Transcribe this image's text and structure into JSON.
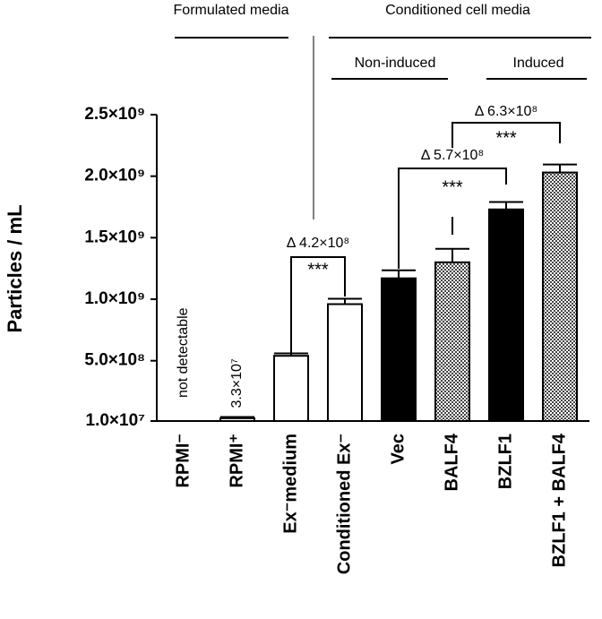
{
  "chart_data": {
    "type": "bar",
    "ylabel": "Particles / mL",
    "categories": [
      "RPMI⁻",
      "RPMI⁺",
      "Ex⁻medium",
      "Conditioned Ex⁻",
      "Vec",
      "BALF4",
      "BZLF1",
      "BZLF1 + BALF4"
    ],
    "values": [
      null,
      33000000,
      540000000,
      960000000,
      1170000000,
      1300000000,
      1730000000,
      2030000000
    ],
    "errors": [
      null,
      10000000,
      20000000,
      44000000,
      65000000,
      110000000,
      60000000,
      65000000
    ],
    "value_labels": [
      null,
      "3.3×10⁷",
      null,
      null,
      null,
      null,
      null,
      null
    ],
    "bar_styles": [
      "open",
      "open",
      "open",
      "open",
      "solid",
      "checkered",
      "solid",
      "checkered"
    ],
    "annotations": [
      "not detectable"
    ],
    "ylim": [
      10000000,
      2500000000
    ],
    "yticks": [
      {
        "value": 10000000,
        "label": "1.0×10⁷"
      },
      {
        "value": 500000000,
        "label": "5.0×10⁸"
      },
      {
        "value": 1000000000,
        "label": "1.0×10⁹"
      },
      {
        "value": 1500000000,
        "label": "1.5×10⁹"
      },
      {
        "value": 2000000000,
        "label": "2.0×10⁹"
      },
      {
        "value": 2500000000,
        "label": "2.5×10⁹"
      }
    ],
    "groups": [
      "Formulated media",
      "Conditioned cell media",
      "Non-induced",
      "Induced"
    ],
    "comparisons": [
      {
        "delta": "Δ 4.2×10⁸",
        "stars": "***"
      },
      {
        "delta": "Δ 5.7×10⁸",
        "stars": "***"
      },
      {
        "delta": "Δ 6.3×10⁸",
        "stars": "***"
      }
    ],
    "grid": false
  }
}
